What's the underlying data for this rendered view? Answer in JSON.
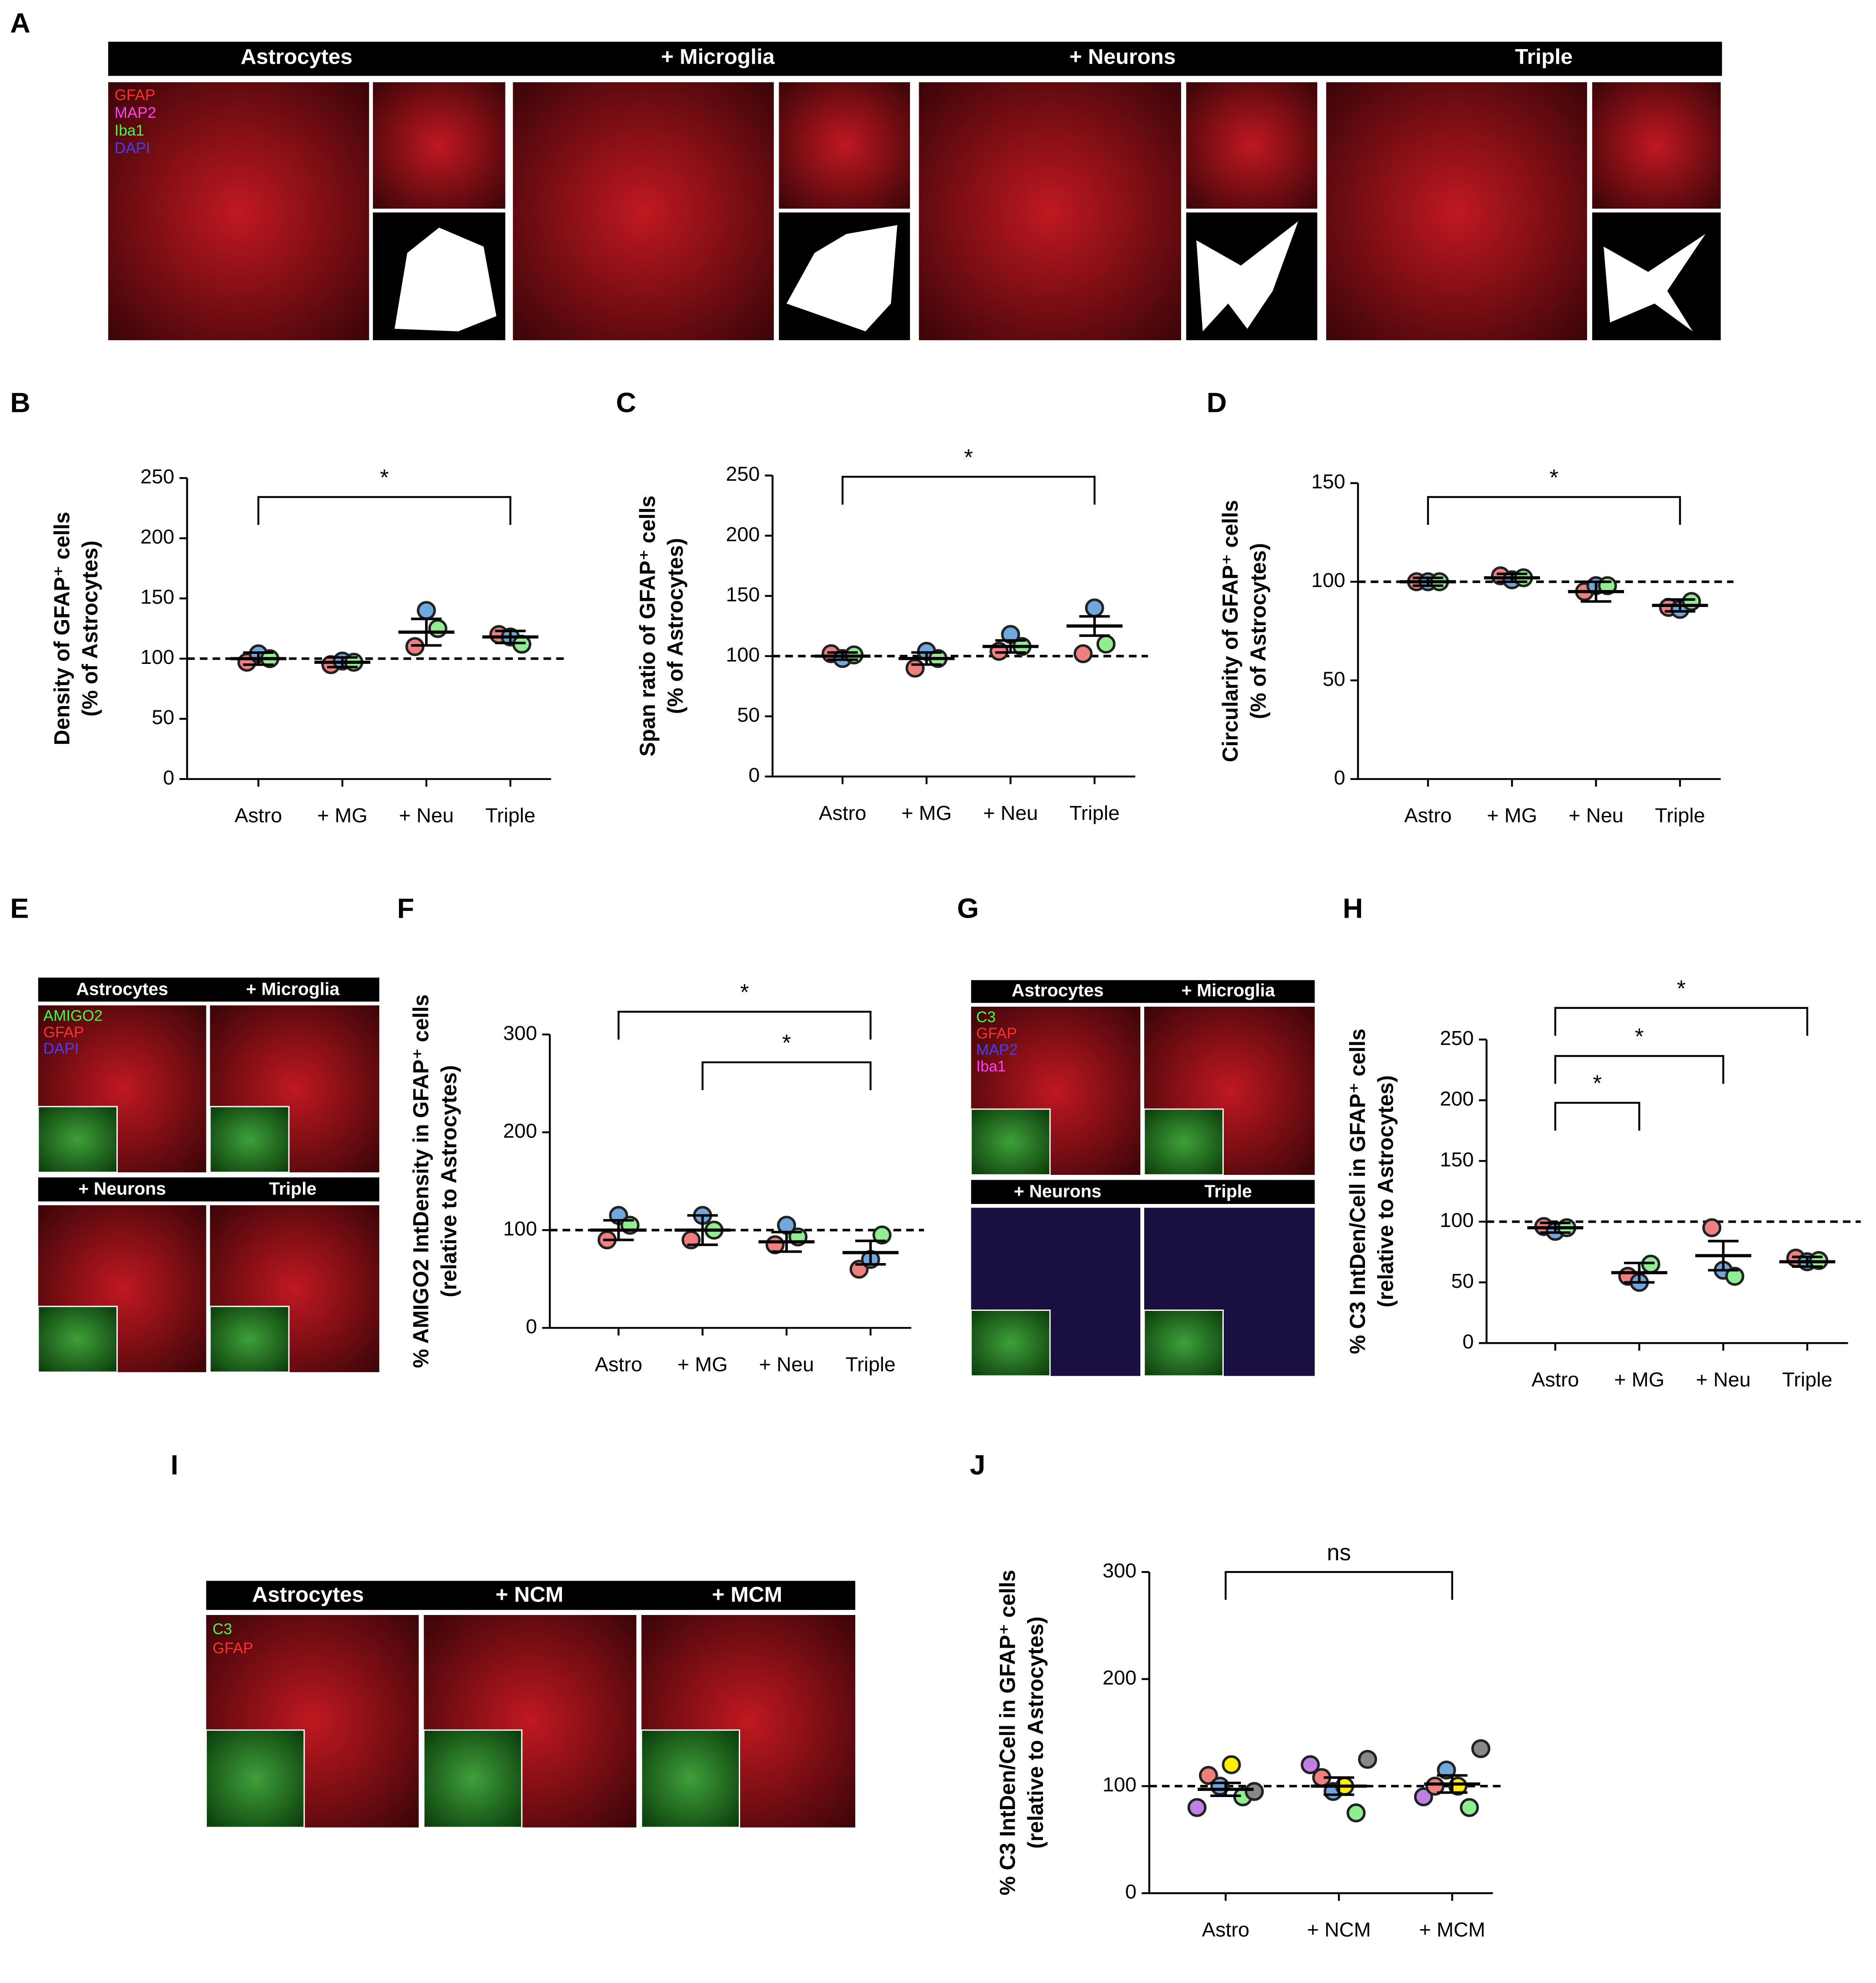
{
  "image_panels": [
    {
      "panel": "A",
      "titles": [
        "Astrocytes",
        "+ Microglia",
        "+ Neurons",
        "Triple"
      ],
      "channels": [
        "GFAP",
        "MAP2",
        "Iba1",
        "DAPI"
      ]
    },
    {
      "panel": "E",
      "titles": [
        "Astrocytes",
        "+ Microglia",
        "+ Neurons",
        "Triple"
      ],
      "channels": [
        "AMIGO2",
        "GFAP",
        "DAPI"
      ]
    },
    {
      "panel": "G",
      "titles": [
        "Astrocytes",
        "+ Microglia",
        "+ Neurons",
        "Triple"
      ],
      "channels": [
        "C3",
        "GFAP",
        "MAP2",
        "Iba1"
      ]
    },
    {
      "panel": "I",
      "titles": [
        "Astrocytes",
        "+ NCM",
        "+ MCM"
      ],
      "channels": [
        "C3",
        "GFAP"
      ]
    }
  ],
  "chart_data": [
    {
      "type": "dotplot",
      "panel": "B",
      "ylabel": [
        "Density of GFAP⁺ cells",
        "(% of Astrocytes)"
      ],
      "categories": [
        "Astro",
        "+ MG",
        "+ Neu",
        "Triple"
      ],
      "mean": [
        100,
        97,
        122,
        118
      ],
      "sem": [
        5,
        4,
        11,
        5
      ],
      "replicate_colors": [
        "#f08080",
        "#6fa8dc",
        "#90ee90"
      ],
      "replicates": [
        [
          97,
          104,
          100
        ],
        [
          95,
          98,
          97
        ],
        [
          110,
          140,
          125
        ],
        [
          120,
          118,
          112
        ]
      ],
      "ylim": [
        0,
        250
      ],
      "yticks": [
        0,
        50,
        100,
        150,
        200,
        250
      ],
      "refline": 100,
      "brackets": [
        {
          "pair": [
            0,
            3
          ],
          "label": "*"
        }
      ]
    },
    {
      "type": "dotplot",
      "panel": "C",
      "ylabel": [
        "Span ratio of GFAP⁺ cells",
        "(% of Astrocytes)"
      ],
      "categories": [
        "Astro",
        "+ MG",
        "+ Neu",
        "Triple"
      ],
      "mean": [
        100,
        98,
        108,
        125
      ],
      "sem": [
        3,
        5,
        5,
        8
      ],
      "replicate_colors": [
        "#f08080",
        "#6fa8dc",
        "#90ee90"
      ],
      "replicates": [
        [
          102,
          98,
          101
        ],
        [
          90,
          104,
          98
        ],
        [
          104,
          118,
          108
        ],
        [
          102,
          140,
          110
        ]
      ],
      "ylim": [
        0,
        250
      ],
      "yticks": [
        0,
        50,
        100,
        150,
        200,
        250
      ],
      "refline": 100,
      "brackets": [
        {
          "pair": [
            0,
            3
          ],
          "label": "*"
        }
      ]
    },
    {
      "type": "dotplot",
      "panel": "D",
      "ylabel": [
        "Circularity of GFAP⁺ cells",
        "(% of Astrocytes)"
      ],
      "categories": [
        "Astro",
        "+ MG",
        "+ Neu",
        "Triple"
      ],
      "mean": [
        100,
        102,
        95,
        88
      ],
      "sem": [
        2,
        2,
        5,
        3
      ],
      "replicate_colors": [
        "#f08080",
        "#6fa8dc",
        "#90ee90"
      ],
      "replicates": [
        [
          100,
          100,
          100
        ],
        [
          103,
          101,
          102
        ],
        [
          95,
          98,
          98
        ],
        [
          87,
          86,
          90
        ]
      ],
      "ylim": [
        0,
        150
      ],
      "yticks": [
        0,
        50,
        100,
        150
      ],
      "refline": 100,
      "brackets": [
        {
          "pair": [
            0,
            3
          ],
          "label": "*"
        }
      ]
    },
    {
      "type": "dotplot",
      "panel": "F",
      "ylabel": [
        "% AMIGO2 IntDensity in GFAP⁺ cells",
        "(relative to Astrocytes)"
      ],
      "categories": [
        "Astro",
        "+ MG",
        "+ Neu",
        "Triple"
      ],
      "mean": [
        100,
        100,
        88,
        77
      ],
      "sem": [
        10,
        15,
        10,
        12
      ],
      "replicate_colors": [
        "#f08080",
        "#6fa8dc",
        "#90ee90"
      ],
      "replicates": [
        [
          90,
          115,
          105
        ],
        [
          90,
          115,
          100
        ],
        [
          85,
          105,
          93
        ],
        [
          60,
          70,
          95
        ]
      ],
      "ylim": [
        0,
        300
      ],
      "yticks": [
        0,
        100,
        200,
        300
      ],
      "refline": 100,
      "brackets": [
        {
          "pair": [
            0,
            3
          ],
          "label": "*"
        },
        {
          "pair": [
            1,
            3
          ],
          "label": "*"
        }
      ]
    },
    {
      "type": "dotplot",
      "panel": "H",
      "ylabel": [
        "% C3 IntDen/Cell in GFAP⁺ cells",
        "(relative to Astrocytes)"
      ],
      "categories": [
        "Astro",
        "+ MG",
        "+ Neu",
        "Triple"
      ],
      "mean": [
        95,
        58,
        72,
        67
      ],
      "sem": [
        4,
        8,
        12,
        4
      ],
      "replicate_colors": [
        "#f08080",
        "#6fa8dc",
        "#90ee90"
      ],
      "replicates": [
        [
          96,
          92,
          95
        ],
        [
          55,
          50,
          65
        ],
        [
          95,
          60,
          55
        ],
        [
          70,
          67,
          68
        ]
      ],
      "ylim": [
        0,
        250
      ],
      "yticks": [
        0,
        50,
        100,
        150,
        200,
        250
      ],
      "refline": 100,
      "brackets": [
        {
          "pair": [
            0,
            3
          ],
          "label": "*"
        },
        {
          "pair": [
            0,
            2
          ],
          "label": "*"
        },
        {
          "pair": [
            0,
            1
          ],
          "label": "*"
        }
      ]
    },
    {
      "type": "dotplot",
      "panel": "J",
      "ylabel": [
        "% C3 IntDen/Cell in GFAP⁺ cells",
        "(relative to Astrocytes)"
      ],
      "categories": [
        "Astro",
        "+ NCM",
        "+ MCM"
      ],
      "mean": [
        97,
        100,
        102
      ],
      "sem": [
        6,
        8,
        8
      ],
      "replicate_colors": [
        "#c080e0",
        "#f08080",
        "#6fa8dc",
        "#ffee00",
        "#90ee90",
        "#888888"
      ],
      "replicates": [
        [
          80,
          110,
          100,
          120,
          90,
          95
        ],
        [
          120,
          108,
          95,
          100,
          75,
          125
        ],
        [
          90,
          100,
          115,
          100,
          80,
          135
        ]
      ],
      "ylim": [
        0,
        300
      ],
      "yticks": [
        0,
        100,
        200,
        300
      ],
      "refline": 100,
      "brackets": [
        {
          "pair": [
            0,
            2
          ],
          "label": "ns"
        }
      ]
    }
  ]
}
